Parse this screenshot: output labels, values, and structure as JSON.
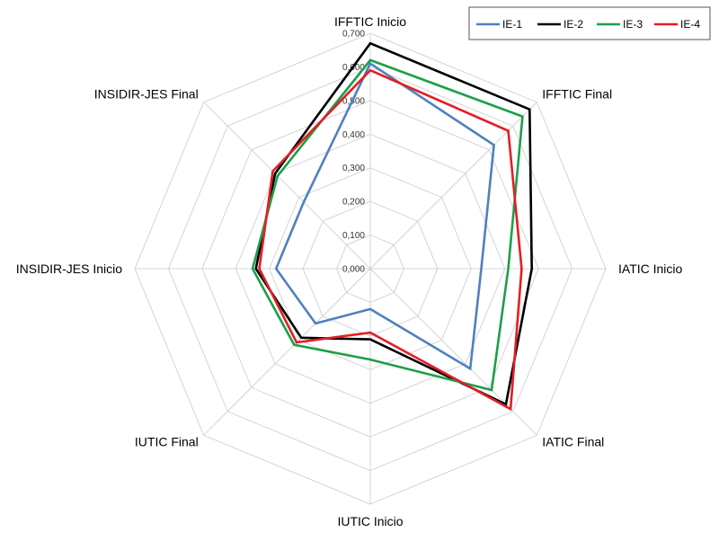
{
  "chart_data": {
    "type": "radar",
    "axes": [
      "IFFTIC Inicio",
      "IFFTIC Final",
      "IATIC Inicio",
      "IATIC Final",
      "IUTIC Inicio",
      "IUTIC Final",
      "INSIDIR-JES Inicio",
      "INSIDIR-JES Final"
    ],
    "ticks": [
      "0,000",
      "0,100",
      "0,200",
      "0,300",
      "0,400",
      "0,500",
      "0,600",
      "0,700"
    ],
    "rlim": [
      0,
      0.7
    ],
    "grid": true,
    "legend_position": "top-right",
    "series": [
      {
        "name": "IE-1",
        "color": "#4f81bd",
        "values": [
          0.61,
          0.52,
          0.33,
          0.42,
          0.12,
          0.23,
          0.28,
          0.28
        ]
      },
      {
        "name": "IE-2",
        "color": "#000000",
        "values": [
          0.67,
          0.67,
          0.48,
          0.57,
          0.21,
          0.29,
          0.34,
          0.4
        ]
      },
      {
        "name": "IE-3",
        "color": "#1e9e4a",
        "values": [
          0.62,
          0.64,
          0.41,
          0.51,
          0.27,
          0.32,
          0.35,
          0.39
        ]
      },
      {
        "name": "IE-4",
        "color": "#e31e24",
        "values": [
          0.59,
          0.58,
          0.45,
          0.59,
          0.19,
          0.31,
          0.33,
          0.41
        ]
      }
    ]
  }
}
